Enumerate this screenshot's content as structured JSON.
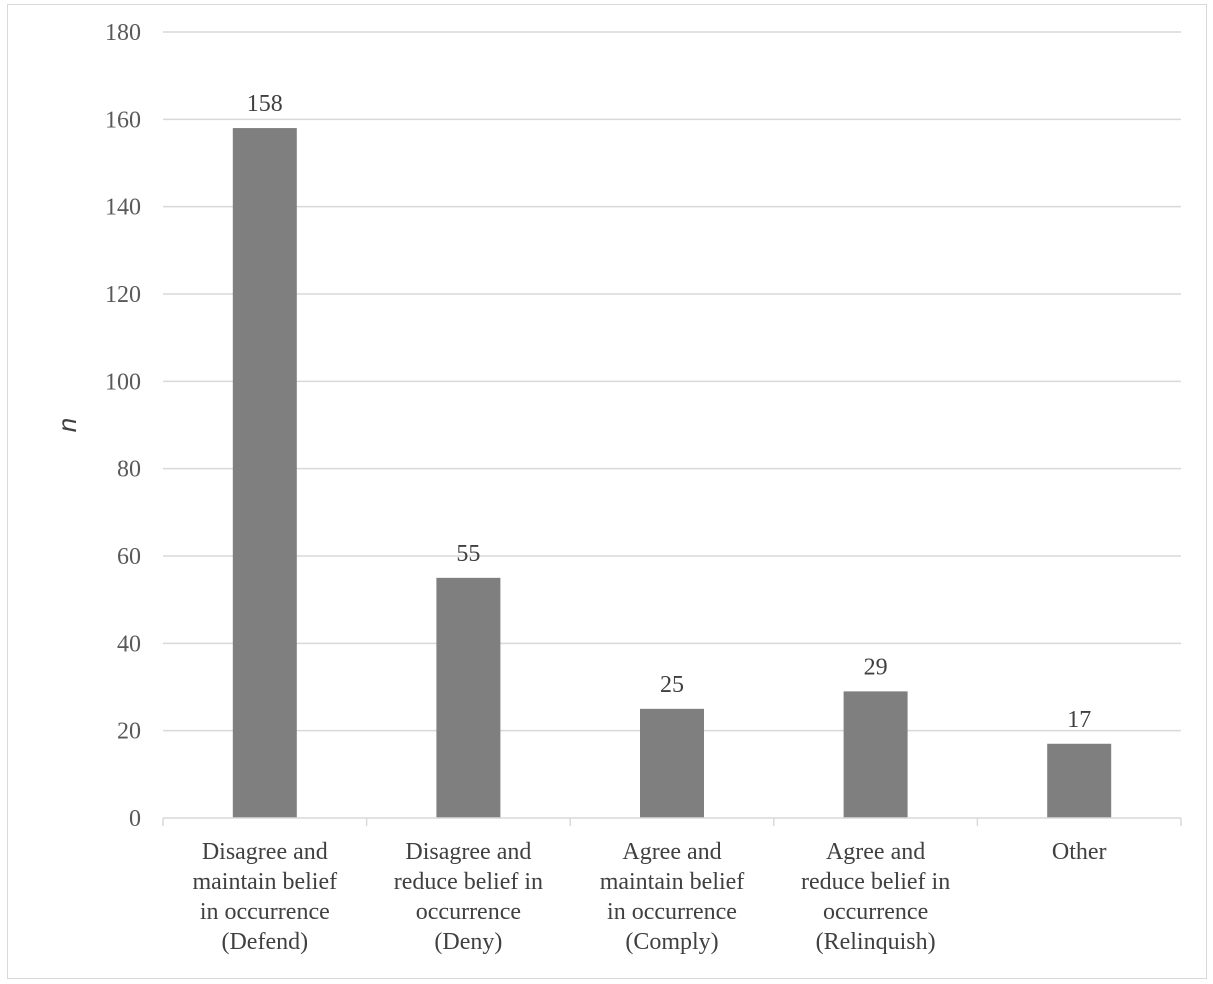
{
  "chart_data": {
    "type": "bar",
    "title": "",
    "xlabel": "",
    "ylabel": "n",
    "ylim": [
      0,
      180
    ],
    "ytick_step": 20,
    "yticks": [
      "0",
      "20",
      "40",
      "60",
      "80",
      "100",
      "120",
      "140",
      "160",
      "180"
    ],
    "grid": true,
    "legend": "none",
    "bar_color": "#7f7f7f",
    "categories": [
      [
        "Disagree and",
        "maintain belief",
        "in occurrence",
        "(Defend)"
      ],
      [
        "Disagree and",
        "reduce belief in",
        "occurrence",
        "(Deny)"
      ],
      [
        "Agree and",
        "maintain belief",
        "in occurrence",
        "(Comply)"
      ],
      [
        "Agree and",
        "reduce belief in",
        "occurrence",
        "(Relinquish)"
      ],
      [
        "Other"
      ]
    ],
    "values": [
      158,
      55,
      25,
      29,
      17
    ],
    "data_labels": [
      "158",
      "55",
      "25",
      "29",
      "17"
    ]
  }
}
